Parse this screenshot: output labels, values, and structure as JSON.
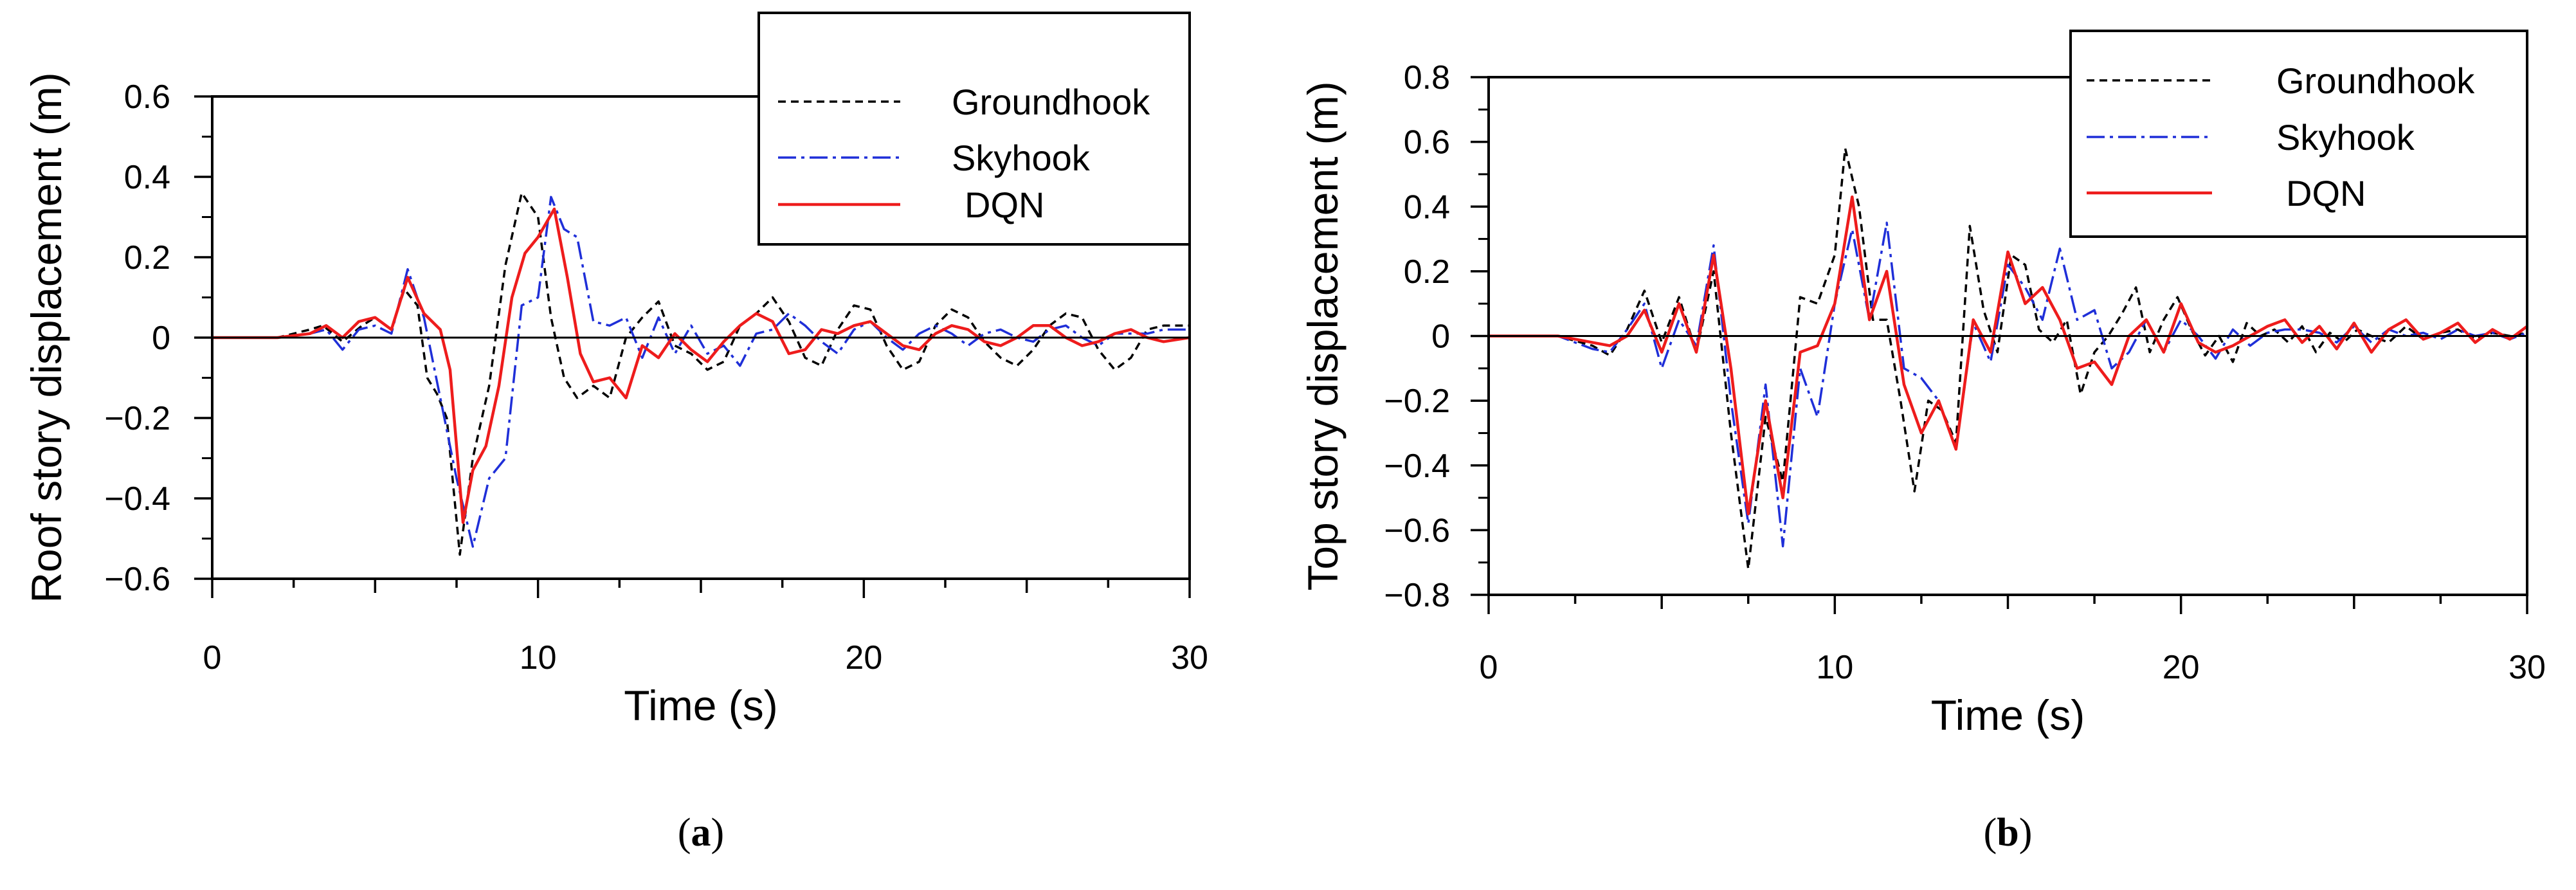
{
  "chart_data": [
    {
      "type": "line",
      "panel_label_open": "(",
      "panel_label_letter": "a",
      "panel_label_close": ")",
      "xlabel": "Time (s)",
      "ylabel": "Roof  story displacement (m)",
      "xlim": [
        0,
        30
      ],
      "ylim": [
        -0.6,
        0.6
      ],
      "xticks": [
        0,
        10,
        20,
        30
      ],
      "xtick_labels": [
        "0",
        "10",
        "20",
        "30"
      ],
      "yticks": [
        -0.6,
        -0.4,
        -0.2,
        0,
        0.2,
        0.4,
        0.6
      ],
      "ytick_labels": [
        "−0.6",
        "−0.4",
        "−0.2",
        "0",
        "0.2",
        "0.4",
        "0.6"
      ],
      "legend_position": "top-right",
      "series": [
        {
          "name": "Groundhook",
          "color": "#000000",
          "style": "dashed",
          "x": [
            0,
            2,
            3,
            3.4,
            4,
            4.6,
            5,
            5.5,
            5.9,
            6.3,
            6.6,
            6.9,
            7.2,
            7.6,
            8,
            8.5,
            9,
            9.5,
            10,
            10.4,
            10.8,
            11.2,
            11.7,
            12.2,
            12.7,
            13.2,
            13.7,
            14.2,
            14.7,
            15.2,
            15.7,
            16.2,
            16.7,
            17.2,
            17.7,
            18.2,
            18.7,
            19.2,
            19.7,
            20.2,
            20.7,
            21.2,
            21.7,
            22.2,
            22.7,
            23.2,
            23.7,
            24.2,
            24.7,
            25.2,
            25.7,
            26.2,
            26.7,
            27.2,
            27.7,
            28.2,
            28.7,
            29.2,
            30
          ],
          "y": [
            0,
            0,
            0.02,
            0.03,
            -0.01,
            0.03,
            0.05,
            0.02,
            0.12,
            0.08,
            -0.1,
            -0.14,
            -0.2,
            -0.54,
            -0.3,
            -0.12,
            0.18,
            0.36,
            0.3,
            0.05,
            -0.1,
            -0.15,
            -0.12,
            -0.15,
            0,
            0.05,
            0.09,
            -0.02,
            -0.04,
            -0.08,
            -0.06,
            0.03,
            0.06,
            0.1,
            0.04,
            -0.05,
            -0.07,
            0.02,
            0.08,
            0.07,
            -0.02,
            -0.08,
            -0.06,
            0.03,
            0.07,
            0.05,
            -0.01,
            -0.05,
            -0.07,
            -0.03,
            0.03,
            0.06,
            0.05,
            -0.03,
            -0.08,
            -0.05,
            0.02,
            0.03,
            0.03
          ]
        },
        {
          "name": "Skyhook",
          "color": "#1f2fd8",
          "style": "dashdot",
          "x": [
            0,
            2,
            3,
            3.5,
            4,
            4.5,
            5,
            5.5,
            6,
            6.5,
            7,
            7.5,
            8,
            8.5,
            9,
            9.5,
            10,
            10.4,
            10.8,
            11.2,
            11.7,
            12.2,
            12.7,
            13.2,
            13.7,
            14.2,
            14.7,
            15.2,
            15.7,
            16.2,
            16.7,
            17.2,
            17.7,
            18.2,
            18.7,
            19.2,
            19.7,
            20.2,
            20.7,
            21.2,
            21.7,
            22.2,
            22.7,
            23.2,
            23.7,
            24.2,
            24.7,
            25.2,
            25.7,
            26.2,
            26.7,
            27.2,
            27.7,
            28.2,
            28.7,
            29.2,
            30
          ],
          "y": [
            0,
            0,
            0.01,
            0.02,
            -0.03,
            0.02,
            0.03,
            0.01,
            0.17,
            0.05,
            -0.15,
            -0.35,
            -0.52,
            -0.35,
            -0.3,
            0.08,
            0.1,
            0.35,
            0.27,
            0.25,
            0.04,
            0.03,
            0.05,
            -0.05,
            0.05,
            -0.04,
            0.03,
            -0.04,
            -0.02,
            -0.07,
            0.01,
            0.02,
            0.06,
            0.03,
            -0.01,
            -0.04,
            0.02,
            0.04,
            0,
            -0.03,
            0.01,
            0.03,
            0.01,
            -0.02,
            0.01,
            0.02,
            0,
            -0.01,
            0.02,
            0.03,
            0,
            -0.02,
            0.01,
            0.01,
            0.01,
            0.02,
            0.02
          ]
        },
        {
          "name": "DQN",
          "color": "#ee1c1c",
          "style": "solid",
          "x": [
            0,
            2,
            3,
            3.5,
            4,
            4.5,
            5,
            5.5,
            6,
            6.5,
            7,
            7.3,
            7.7,
            8,
            8.4,
            8.8,
            9.2,
            9.6,
            10,
            10.5,
            10.9,
            11.3,
            11.7,
            12.2,
            12.7,
            13.2,
            13.7,
            14.2,
            14.7,
            15.2,
            15.7,
            16.2,
            16.7,
            17.2,
            17.7,
            18.2,
            18.7,
            19.2,
            19.7,
            20.2,
            20.7,
            21.2,
            21.7,
            22.2,
            22.7,
            23.2,
            23.7,
            24.2,
            24.7,
            25.2,
            25.7,
            26.2,
            26.7,
            27.2,
            27.7,
            28.2,
            28.7,
            29.2,
            30
          ],
          "y": [
            0,
            0,
            0.01,
            0.03,
            0,
            0.04,
            0.05,
            0.02,
            0.15,
            0.06,
            0.02,
            -0.08,
            -0.46,
            -0.33,
            -0.27,
            -0.12,
            0.1,
            0.21,
            0.25,
            0.32,
            0.15,
            -0.04,
            -0.11,
            -0.1,
            -0.15,
            -0.02,
            -0.05,
            0.01,
            -0.03,
            -0.06,
            -0.01,
            0.03,
            0.06,
            0.04,
            -0.04,
            -0.03,
            0.02,
            0.01,
            0.03,
            0.04,
            0.01,
            -0.02,
            -0.03,
            0.01,
            0.03,
            0.02,
            -0.01,
            -0.02,
            0,
            0.03,
            0.03,
            0,
            -0.02,
            -0.01,
            0.01,
            0.02,
            0,
            -0.01,
            0
          ]
        }
      ]
    },
    {
      "type": "line",
      "panel_label_open": "(",
      "panel_label_letter": "b",
      "panel_label_close": ")",
      "xlabel": "Time (s)",
      "ylabel": "Top story displacement (m)",
      "xlim": [
        0,
        30
      ],
      "ylim": [
        -0.8,
        0.8
      ],
      "xticks": [
        0,
        10,
        20,
        30
      ],
      "xtick_labels": [
        "0",
        "10",
        "20",
        "30"
      ],
      "yticks": [
        -0.8,
        -0.6,
        -0.4,
        -0.2,
        0,
        0.2,
        0.4,
        0.6,
        0.8
      ],
      "ytick_labels": [
        "−0.8",
        "−0.6",
        "−0.4",
        "−0.2",
        "0",
        "0.2",
        "0.4",
        "0.6",
        "0.8"
      ],
      "legend_position": "top-right",
      "series": [
        {
          "name": "Groundhook",
          "color": "#000000",
          "style": "dashed",
          "x": [
            0,
            2,
            3,
            3.5,
            4,
            4.5,
            5,
            5.5,
            6,
            6.5,
            7,
            7.5,
            8,
            8.5,
            9,
            9.5,
            10,
            10.3,
            10.7,
            11.1,
            11.5,
            11.9,
            12.3,
            12.7,
            13.1,
            13.5,
            13.9,
            14.3,
            14.7,
            15.1,
            15.5,
            15.9,
            16.3,
            16.7,
            17.1,
            17.5,
            17.9,
            18.3,
            18.7,
            19.1,
            19.5,
            19.9,
            20.3,
            20.7,
            21.1,
            21.5,
            21.9,
            22.3,
            22.7,
            23.1,
            23.5,
            23.9,
            24.3,
            24.7,
            25.1,
            25.5,
            26,
            26.5,
            27,
            27.5,
            28,
            28.5,
            29,
            29.5,
            30
          ],
          "y": [
            0,
            0,
            -0.03,
            -0.06,
            0.02,
            0.14,
            -0.02,
            0.12,
            -0.05,
            0.2,
            -0.3,
            -0.72,
            -0.25,
            -0.45,
            0.12,
            0.1,
            0.25,
            0.58,
            0.4,
            0.05,
            0.05,
            -0.2,
            -0.48,
            -0.2,
            -0.23,
            -0.33,
            0.34,
            0.08,
            -0.05,
            0.25,
            0.22,
            0.02,
            -0.02,
            0.05,
            -0.18,
            -0.05,
            0,
            0.07,
            0.15,
            -0.05,
            0.05,
            0.12,
            0.02,
            -0.06,
            0,
            -0.08,
            0.04,
            0,
            0.02,
            -0.02,
            0.03,
            -0.05,
            0.01,
            -0.02,
            0.02,
            0,
            -0.02,
            0.03,
            -0.01,
            0.01,
            0.02,
            -0.01,
            0.01,
            0,
            0.01
          ]
        },
        {
          "name": "Skyhook",
          "color": "#1f2fd8",
          "style": "dashdot",
          "x": [
            0,
            2,
            3,
            3.5,
            4,
            4.5,
            5,
            5.5,
            6,
            6.5,
            7,
            7.5,
            8,
            8.5,
            9,
            9.5,
            10,
            10.5,
            11,
            11.5,
            12,
            12.5,
            13,
            13.5,
            14,
            14.5,
            15,
            15.5,
            16,
            16.5,
            17,
            17.5,
            18,
            18.5,
            19,
            19.5,
            20,
            20.5,
            21,
            21.5,
            22,
            22.5,
            23,
            23.5,
            24,
            24.5,
            25,
            25.5,
            26,
            26.5,
            27,
            27.5,
            28,
            28.5,
            29,
            29.5,
            30
          ],
          "y": [
            0,
            0,
            -0.04,
            -0.05,
            0.02,
            0.1,
            -0.1,
            0.05,
            -0.03,
            0.28,
            -0.2,
            -0.58,
            -0.15,
            -0.65,
            -0.1,
            -0.25,
            0.1,
            0.33,
            0.05,
            0.35,
            -0.1,
            -0.13,
            -0.2,
            -0.35,
            0.04,
            -0.08,
            0.22,
            0.15,
            0.05,
            0.27,
            0.05,
            0.08,
            -0.1,
            -0.05,
            0.05,
            -0.05,
            0.05,
            0,
            -0.07,
            0.02,
            -0.03,
            0.01,
            0.02,
            0.02,
            0.01,
            -0.02,
            0.03,
            -0.02,
            0.02,
            0,
            0.01,
            -0.01,
            0.02,
            0,
            0.01,
            -0.01,
            0.01
          ]
        },
        {
          "name": "DQN",
          "color": "#ee1c1c",
          "style": "solid",
          "x": [
            0,
            2,
            3,
            3.5,
            4,
            4.5,
            5,
            5.5,
            6,
            6.5,
            7,
            7.5,
            8,
            8.5,
            9,
            9.5,
            10,
            10.5,
            11,
            11.5,
            12,
            12.5,
            13,
            13.5,
            14,
            14.5,
            15,
            15.5,
            16,
            16.5,
            17,
            17.5,
            18,
            18.5,
            19,
            19.5,
            20,
            20.5,
            21,
            21.5,
            22,
            22.5,
            23,
            23.5,
            24,
            24.5,
            25,
            25.5,
            26,
            26.5,
            27,
            27.5,
            28,
            28.5,
            29,
            29.5,
            30
          ],
          "y": [
            0,
            0,
            -0.02,
            -0.03,
            0,
            0.08,
            -0.05,
            0.1,
            -0.05,
            0.25,
            -0.1,
            -0.55,
            -0.2,
            -0.5,
            -0.05,
            -0.03,
            0.1,
            0.43,
            0.05,
            0.2,
            -0.15,
            -0.3,
            -0.2,
            -0.35,
            0.05,
            -0.05,
            0.26,
            0.1,
            0.15,
            0.05,
            -0.1,
            -0.08,
            -0.15,
            0,
            0.05,
            -0.05,
            0.1,
            -0.02,
            -0.05,
            -0.03,
            0,
            0.03,
            0.05,
            -0.02,
            0.03,
            -0.04,
            0.04,
            -0.05,
            0.02,
            0.05,
            -0.01,
            0.01,
            0.04,
            -0.02,
            0.02,
            -0.01,
            0.03
          ]
        }
      ]
    }
  ]
}
